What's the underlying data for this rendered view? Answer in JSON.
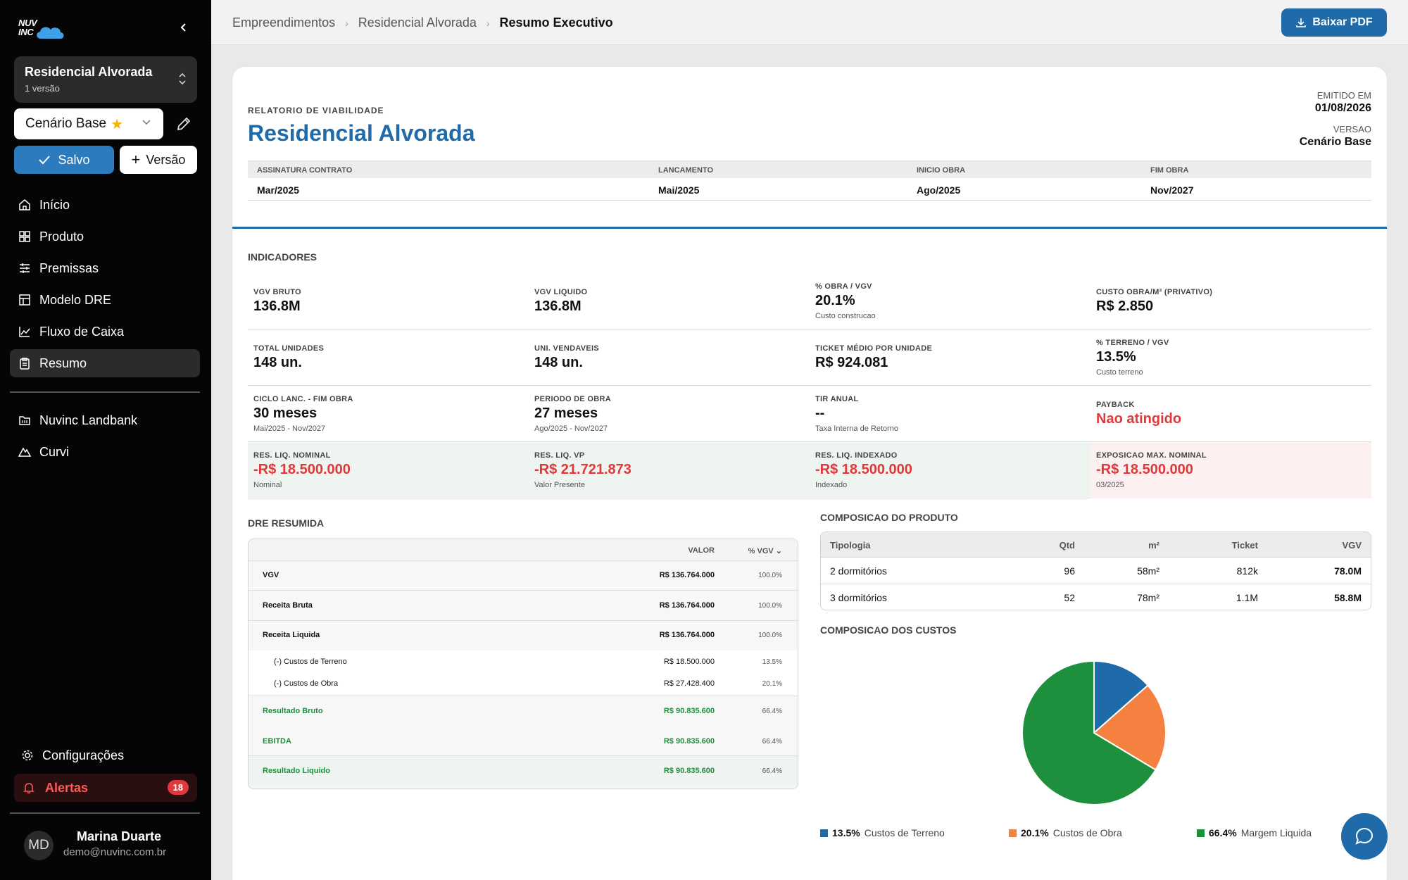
{
  "brand": {
    "logo_text_1": "NUV",
    "logo_text_2": "INC"
  },
  "sidebar": {
    "project_name": "Residencial Alvorada",
    "project_versions": "1 versão",
    "scenario": "Cenário Base",
    "saved_label": "Salvo",
    "new_version_label": "Versão",
    "nav": [
      {
        "label": "Início",
        "icon": "home-icon"
      },
      {
        "label": "Produto",
        "icon": "grid-icon"
      },
      {
        "label": "Premissas",
        "icon": "sliders-icon"
      },
      {
        "label": "Modelo DRE",
        "icon": "table-icon"
      },
      {
        "label": "Fluxo de Caixa",
        "icon": "line-chart-icon"
      },
      {
        "label": "Resumo",
        "icon": "clipboard-icon",
        "active": true
      }
    ],
    "nav2": [
      {
        "label": "Nuvinc Landbank",
        "icon": "map-folder-icon"
      },
      {
        "label": "Curvi",
        "icon": "mountain-icon"
      }
    ],
    "settings_label": "Configurações",
    "alerts_label": "Alertas",
    "alerts_count": "18",
    "user": {
      "initials": "MD",
      "name": "Marina Duarte",
      "email": "demo@nuvinc.com.br"
    }
  },
  "breadcrumb": [
    "Empreendimentos",
    "Residencial Alvorada",
    "Resumo Executivo"
  ],
  "download_label": "Baixar PDF",
  "report": {
    "tag": "RELATORIO DE VIABILIDADE",
    "title": "Residencial Alvorada",
    "emitted_label": "EMITIDO EM",
    "emitted_value": "01/08/2026",
    "version_label": "VERSAO",
    "version_value": "Cenário Base",
    "dates": [
      {
        "label": "ASSINATURA CONTRATO",
        "value": "Mar/2025"
      },
      {
        "label": "LANCAMENTO",
        "value": "Mai/2025"
      },
      {
        "label": "INICIO OBRA",
        "value": "Ago/2025"
      },
      {
        "label": "FIM OBRA",
        "value": "Nov/2027"
      }
    ]
  },
  "indicators_title": "INDICADORES",
  "kpis": [
    [
      {
        "label": "VGV BRUTO",
        "value": "136.8M",
        "sub": ""
      },
      {
        "label": "VGV LIQUIDO",
        "value": "136.8M",
        "sub": ""
      },
      {
        "label": "% OBRA / VGV",
        "value": "20.1%",
        "sub": "Custo construcao"
      },
      {
        "label": "CUSTO OBRA/M² (PRIVATIVO)",
        "value": "R$ 2.850",
        "sub": ""
      }
    ],
    [
      {
        "label": "TOTAL UNIDADES",
        "value": "148 un.",
        "sub": ""
      },
      {
        "label": "UNI. VENDAVEIS",
        "value": "148 un.",
        "sub": ""
      },
      {
        "label": "TICKET MÉDIO POR UNIDADE",
        "value": "R$ 924.081",
        "sub": ""
      },
      {
        "label": "% TERRENO / VGV",
        "value": "13.5%",
        "sub": "Custo terreno"
      }
    ],
    [
      {
        "label": "CICLO LANC. - FIM OBRA",
        "value": "30 meses",
        "sub": "Mai/2025 - Nov/2027"
      },
      {
        "label": "PERIODO DE OBRA",
        "value": "27 meses",
        "sub": "Ago/2025 - Nov/2027"
      },
      {
        "label": "TIR ANUAL",
        "value": "--",
        "sub": "Taxa Interna de Retorno"
      },
      {
        "label": "PAYBACK",
        "value": "Nao atingido",
        "sub": "",
        "red": true
      }
    ],
    [
      {
        "label": "RES. LIQ. NOMINAL",
        "value": "-R$ 18.500.000",
        "sub": "Nominal",
        "red": true
      },
      {
        "label": "RES. LIQ. VP",
        "value": "-R$ 21.721.873",
        "sub": "Valor Presente",
        "red": true
      },
      {
        "label": "RES. LIQ. INDEXADO",
        "value": "-R$ 18.500.000",
        "sub": "Indexado",
        "red": true
      },
      {
        "label": "EXPOSICAO MAX. NOMINAL",
        "value": "-R$ 18.500.000",
        "sub": "03/2025",
        "red": true
      }
    ]
  ],
  "dre": {
    "title": "DRE RESUMIDA",
    "col_value": "VALOR",
    "col_pct": "% VGV",
    "rows": [
      {
        "label": "VGV",
        "value": "R$ 136.764.000",
        "pct": "100.0%"
      },
      {
        "label": "Receita Bruta",
        "value": "R$ 136.764.000",
        "pct": "100.0%"
      },
      {
        "label": "Receita Liquida",
        "value": "R$ 136.764.000",
        "pct": "100.0%"
      },
      {
        "label": "(-) Custos de Terreno",
        "value": "R$ 18.500.000",
        "pct": "13.5%"
      },
      {
        "label": "(-) Custos de Obra",
        "value": "R$ 27.428.400",
        "pct": "20.1%"
      },
      {
        "label": "Resultado Bruto",
        "value": "R$ 90.835.600",
        "pct": "66.4%"
      },
      {
        "label": "EBITDA",
        "value": "R$ 90.835.600",
        "pct": "66.4%"
      },
      {
        "label": "Resultado Liquido",
        "value": "R$ 90.835.600",
        "pct": "66.4%"
      }
    ]
  },
  "product": {
    "title": "COMPOSICAO DO PRODUTO",
    "headers": [
      "Tipologia",
      "Qtd",
      "m²",
      "Ticket",
      "VGV"
    ],
    "rows": [
      [
        "2 dormitórios",
        "96",
        "58m²",
        "812k",
        "78.0M"
      ],
      [
        "3 dormitórios",
        "52",
        "78m²",
        "1.1M",
        "58.8M"
      ]
    ]
  },
  "costs_title": "COMPOSICAO DOS CUSTOS",
  "chart_data": {
    "type": "pie",
    "title": "COMPOSICAO DOS CUSTOS",
    "categories": [
      "Custos de Terreno",
      "Custos de Obra",
      "Margem Liquida"
    ],
    "values": [
      13.5,
      20.1,
      66.4
    ],
    "value_labels": [
      "13.5%",
      "20.1%",
      "66.4%"
    ],
    "colors": [
      "#1f6aa8",
      "#f4813f",
      "#1d8f3d"
    ],
    "legend_position": "bottom"
  }
}
